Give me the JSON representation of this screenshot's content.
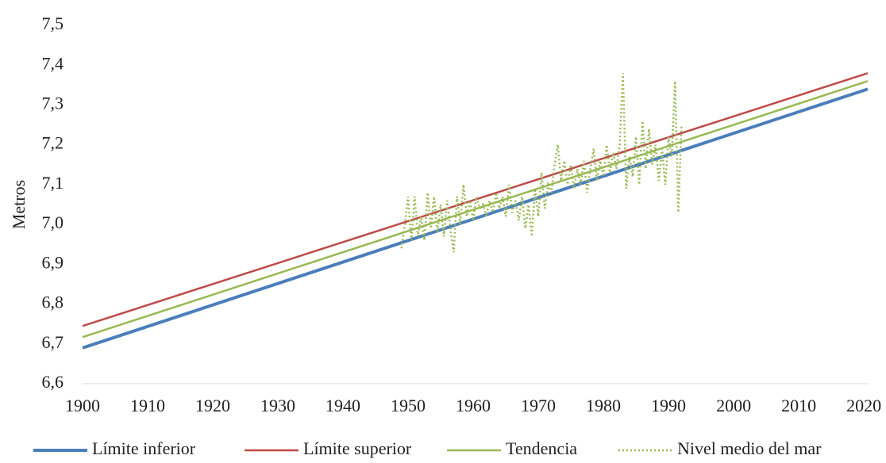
{
  "chart_data": {
    "type": "line",
    "y_label": "Metros",
    "xlim": [
      1900,
      2020.6
    ],
    "xticks": [
      1900,
      1910,
      1920,
      1930,
      1940,
      1950,
      1960,
      1970,
      1980,
      1990,
      2000,
      2010,
      2020
    ],
    "ylim": [
      6.6,
      7.5
    ],
    "yticks": [
      {
        "value": 6.6,
        "label": "6,6"
      },
      {
        "value": 6.7,
        "label": "6,7"
      },
      {
        "value": 6.8,
        "label": "6,8"
      },
      {
        "value": 6.9,
        "label": "6,9"
      },
      {
        "value": 7.0,
        "label": "7,0"
      },
      {
        "value": 7.1,
        "label": "7,1"
      },
      {
        "value": 7.2,
        "label": "7,2"
      },
      {
        "value": 7.3,
        "label": "7,3"
      },
      {
        "value": 7.4,
        "label": "7,4"
      },
      {
        "value": 7.5,
        "label": "7,5"
      }
    ],
    "legend": "bottom",
    "series": [
      {
        "name": "Límite inferior",
        "color": "#4a7ebb",
        "width": 4,
        "dash": "solid",
        "x": [
          1900,
          2020.6
        ],
        "values": [
          6.69,
          7.34
        ]
      },
      {
        "name": "Límite superior",
        "color": "#be4b48",
        "width": 2.5,
        "dash": "solid",
        "x": [
          1900,
          2020.6
        ],
        "values": [
          6.745,
          7.38
        ]
      },
      {
        "name": "Tendencia",
        "color": "#98b954",
        "width": 2.5,
        "dash": "solid",
        "x": [
          1900,
          2020.6
        ],
        "values": [
          6.717,
          7.36
        ]
      },
      {
        "name": "Nivel medio del mar",
        "color": "#98b954",
        "width": 2.5,
        "dash": "dotted",
        "x": [
          1949,
          1949.5,
          1950,
          1950.5,
          1951,
          1951.5,
          1952,
          1952.5,
          1953,
          1953.5,
          1954,
          1954.5,
          1955,
          1955.5,
          1956,
          1956.5,
          1957,
          1957.5,
          1958,
          1958.5,
          1959,
          1959.5,
          1960,
          1960.5,
          1961,
          1961.5,
          1962,
          1962.5,
          1963,
          1963.5,
          1964,
          1964.5,
          1965,
          1965.5,
          1966,
          1966.5,
          1967,
          1967.5,
          1968,
          1968.5,
          1969,
          1969.5,
          1970,
          1970.5,
          1971,
          1971.5,
          1972,
          1972.5,
          1973,
          1973.5,
          1974,
          1974.5,
          1975,
          1975.5,
          1976,
          1976.5,
          1977,
          1977.5,
          1978,
          1978.5,
          1979,
          1979.5,
          1980,
          1980.5,
          1981,
          1981.5,
          1982,
          1982.5,
          1983,
          1983.5,
          1984,
          1984.5,
          1985,
          1985.5,
          1986,
          1986.5,
          1987,
          1987.5,
          1988,
          1988.5,
          1989,
          1989.5,
          1990,
          1990.5,
          1991,
          1991.5,
          1992
        ],
        "values": [
          6.94,
          7.0,
          7.07,
          6.96,
          7.07,
          6.97,
          7.02,
          6.96,
          7.08,
          6.99,
          7.07,
          6.98,
          7.05,
          6.97,
          7.06,
          6.99,
          6.93,
          7.07,
          7.0,
          7.1,
          7.02,
          7.06,
          7.01,
          7.07,
          7.04,
          7.05,
          7.02,
          7.06,
          7.03,
          7.08,
          7.04,
          7.07,
          7.02,
          7.1,
          7.03,
          7.06,
          7.01,
          7.07,
          6.99,
          7.05,
          6.97,
          7.09,
          7.02,
          7.13,
          7.04,
          7.1,
          7.08,
          7.15,
          7.2,
          7.11,
          7.16,
          7.1,
          7.15,
          7.09,
          7.14,
          7.1,
          7.16,
          7.08,
          7.14,
          7.19,
          7.11,
          7.16,
          7.12,
          7.2,
          7.13,
          7.18,
          7.14,
          7.2,
          7.38,
          7.09,
          7.17,
          7.12,
          7.22,
          7.1,
          7.26,
          7.14,
          7.24,
          7.15,
          7.2,
          7.11,
          7.19,
          7.1,
          7.22,
          7.17,
          7.36,
          7.03,
          7.25
        ]
      }
    ]
  }
}
